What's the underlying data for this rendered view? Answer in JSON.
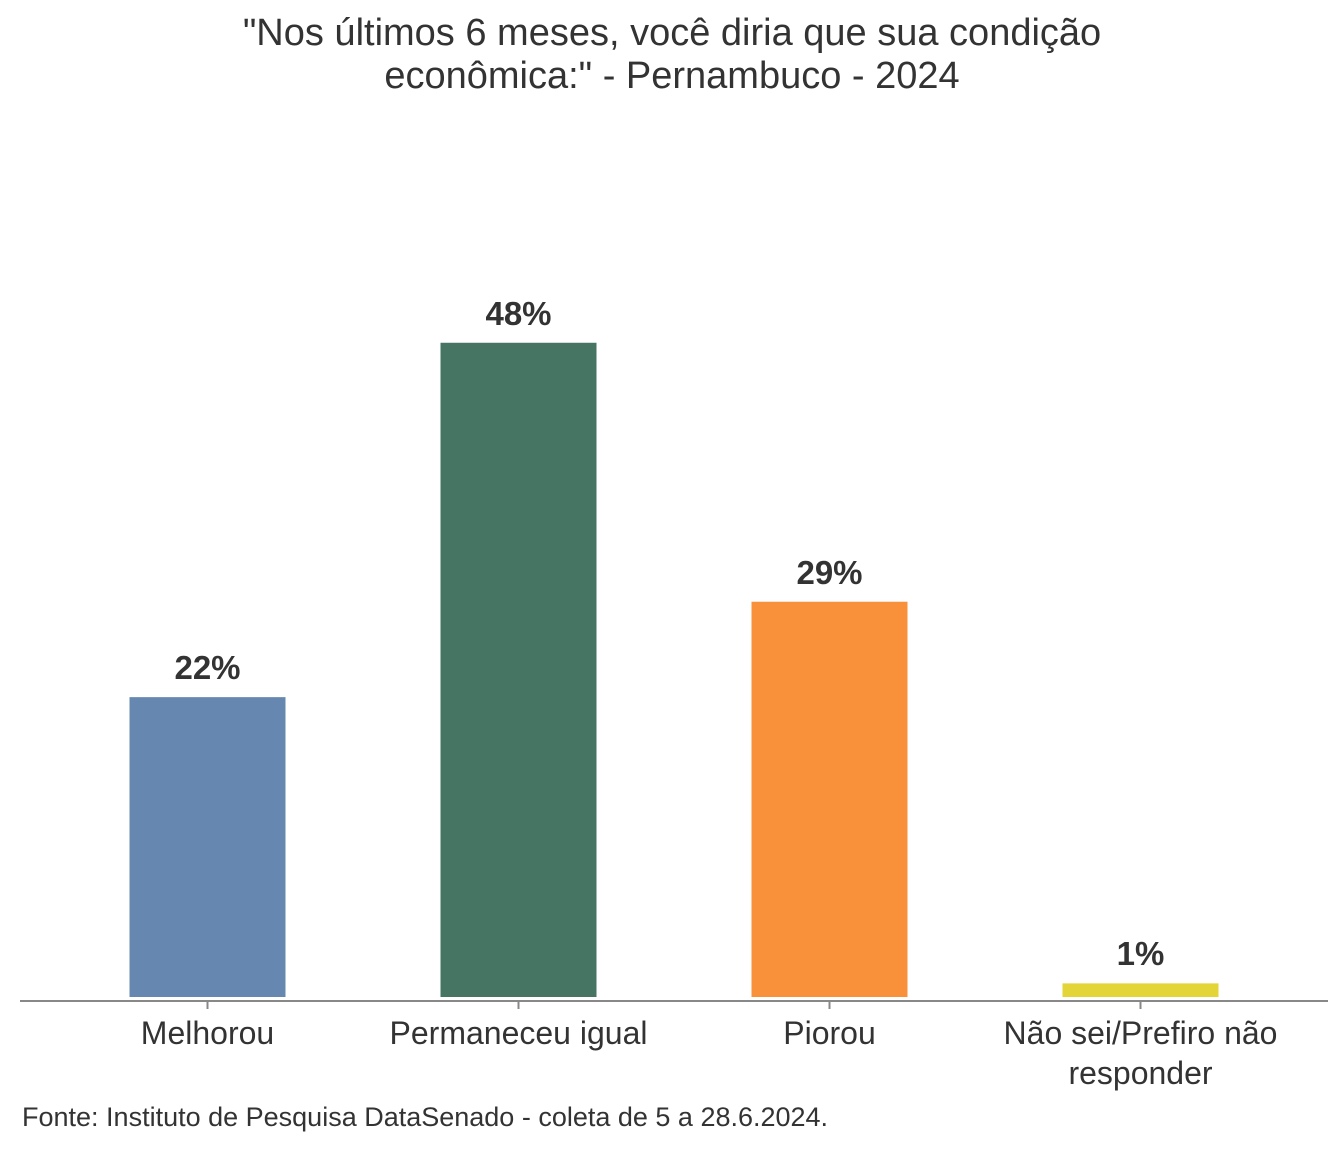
{
  "chart_data": {
    "type": "bar",
    "title": "\"Nos últimos 6 meses, você diria que sua condição econômica:\" - Pernambuco - 2024",
    "categories": [
      "Melhorou",
      "Permaneceu igual",
      "Piorou",
      "Não sei/Prefiro não responder"
    ],
    "values": [
      22,
      48,
      29,
      1
    ],
    "value_labels": [
      "22%",
      "48%",
      "29%",
      "1%"
    ],
    "colors": [
      "#6688b0",
      "#467563",
      "#f9913b",
      "#e3d537"
    ],
    "source": "Fonte: Instituto de Pesquisa DataSenado - coleta de 5 a 28.6.2024."
  }
}
